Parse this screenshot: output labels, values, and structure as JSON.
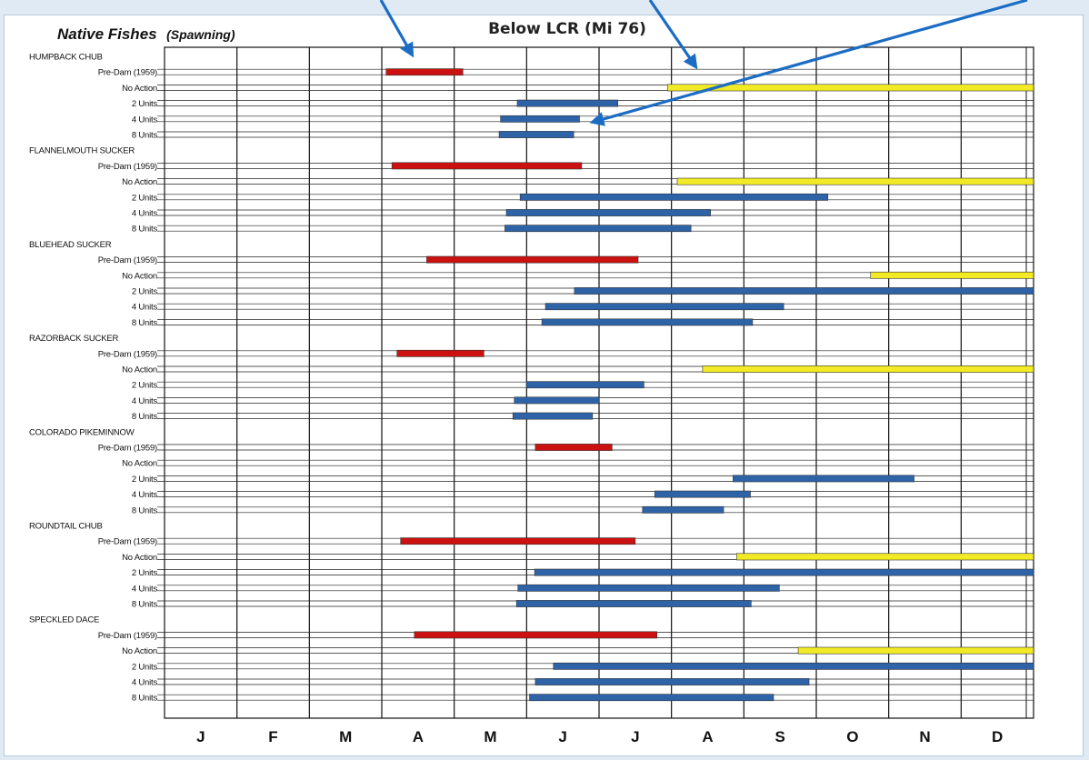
{
  "header": {
    "side_title": "Native Fishes",
    "side_subtitle": "(Spawning)",
    "title": "Below LCR (Mi 76)"
  },
  "colors": {
    "Pre-Dam (1959)": "#cc1111",
    "No Action": "#f2ea25",
    "2 Units": "#2e63a8",
    "4 Units": "#2e63a8",
    "8 Units": "#2e63a8",
    "arrow": "#1b6cc4"
  },
  "chart_data": {
    "type": "gantt",
    "title": "Below LCR (Mi 76)",
    "x_axis": {
      "unit": "month",
      "range": [
        0,
        12
      ],
      "tick_labels": [
        "J",
        "F",
        "M",
        "A",
        "M",
        "J",
        "J",
        "A",
        "S",
        "O",
        "N",
        "D"
      ]
    },
    "grid": true,
    "groups": [
      {
        "name": "HUMPBACK CHUB",
        "rows": [
          {
            "label": "Pre-Dam (1959)",
            "start": 3.06,
            "end": 4.12
          },
          {
            "label": "No Action",
            "start": 6.95,
            "end": 12.0
          },
          {
            "label": "2 Units",
            "start": 4.87,
            "end": 6.26
          },
          {
            "label": "4 Units",
            "start": 4.64,
            "end": 5.73
          },
          {
            "label": "8 Units",
            "start": 4.62,
            "end": 5.65
          }
        ]
      },
      {
        "name": "FLANNELMOUTH SUCKER",
        "rows": [
          {
            "label": "Pre-Dam (1959)",
            "start": 3.14,
            "end": 5.76
          },
          {
            "label": "No Action",
            "start": 7.08,
            "end": 12.0
          },
          {
            "label": "2 Units",
            "start": 4.91,
            "end": 9.16
          },
          {
            "label": "4 Units",
            "start": 4.72,
            "end": 7.54
          },
          {
            "label": "8 Units",
            "start": 4.7,
            "end": 7.27
          }
        ]
      },
      {
        "name": "BLUEHEAD SUCKER",
        "rows": [
          {
            "label": "Pre-Dam (1959)",
            "start": 3.62,
            "end": 6.54
          },
          {
            "label": "No Action",
            "start": 9.75,
            "end": 12.0
          },
          {
            "label": "2 Units",
            "start": 5.66,
            "end": 12.0
          },
          {
            "label": "4 Units",
            "start": 5.26,
            "end": 8.55
          },
          {
            "label": "8 Units",
            "start": 5.21,
            "end": 8.12
          }
        ]
      },
      {
        "name": "RAZORBACK SUCKER",
        "rows": [
          {
            "label": "Pre-Dam (1959)",
            "start": 3.21,
            "end": 4.41
          },
          {
            "label": "No Action",
            "start": 7.43,
            "end": 12.0
          },
          {
            "label": "2 Units",
            "start": 5.0,
            "end": 6.62
          },
          {
            "label": "4 Units",
            "start": 4.83,
            "end": 6.0
          },
          {
            "label": "8 Units",
            "start": 4.81,
            "end": 5.91
          }
        ]
      },
      {
        "name": "COLORADO PIKEMINNOW",
        "rows": [
          {
            "label": "Pre-Dam (1959)",
            "start": 5.12,
            "end": 6.18
          },
          {
            "label": "No Action",
            "start": null,
            "end": null
          },
          {
            "label": "2 Units",
            "start": 7.85,
            "end": 10.35
          },
          {
            "label": "4 Units",
            "start": 6.77,
            "end": 8.09
          },
          {
            "label": "8 Units",
            "start": 6.6,
            "end": 7.72
          }
        ]
      },
      {
        "name": "ROUNDTAIL CHUB",
        "rows": [
          {
            "label": "Pre-Dam (1959)",
            "start": 3.26,
            "end": 6.5
          },
          {
            "label": "No Action",
            "start": 7.9,
            "end": 12.0
          },
          {
            "label": "2 Units",
            "start": 5.11,
            "end": 12.0
          },
          {
            "label": "4 Units",
            "start": 4.88,
            "end": 8.49
          },
          {
            "label": "8 Units",
            "start": 4.86,
            "end": 8.1
          }
        ]
      },
      {
        "name": "SPECKLED DACE",
        "rows": [
          {
            "label": "Pre-Dam (1959)",
            "start": 3.45,
            "end": 6.8
          },
          {
            "label": "No Action",
            "start": 8.75,
            "end": 12.0
          },
          {
            "label": "2 Units",
            "start": 5.37,
            "end": 12.0
          },
          {
            "label": "4 Units",
            "start": 5.12,
            "end": 8.9
          },
          {
            "label": "8 Units",
            "start": 5.04,
            "end": 8.41
          }
        ]
      }
    ],
    "annotations": [
      {
        "type": "arrow",
        "points_to": "HUMPBACK CHUB · Pre-Dam (1959)"
      },
      {
        "type": "arrow",
        "points_to": "HUMPBACK CHUB · No Action"
      },
      {
        "type": "arrow",
        "points_to": "HUMPBACK CHUB · 8 Units"
      }
    ]
  }
}
